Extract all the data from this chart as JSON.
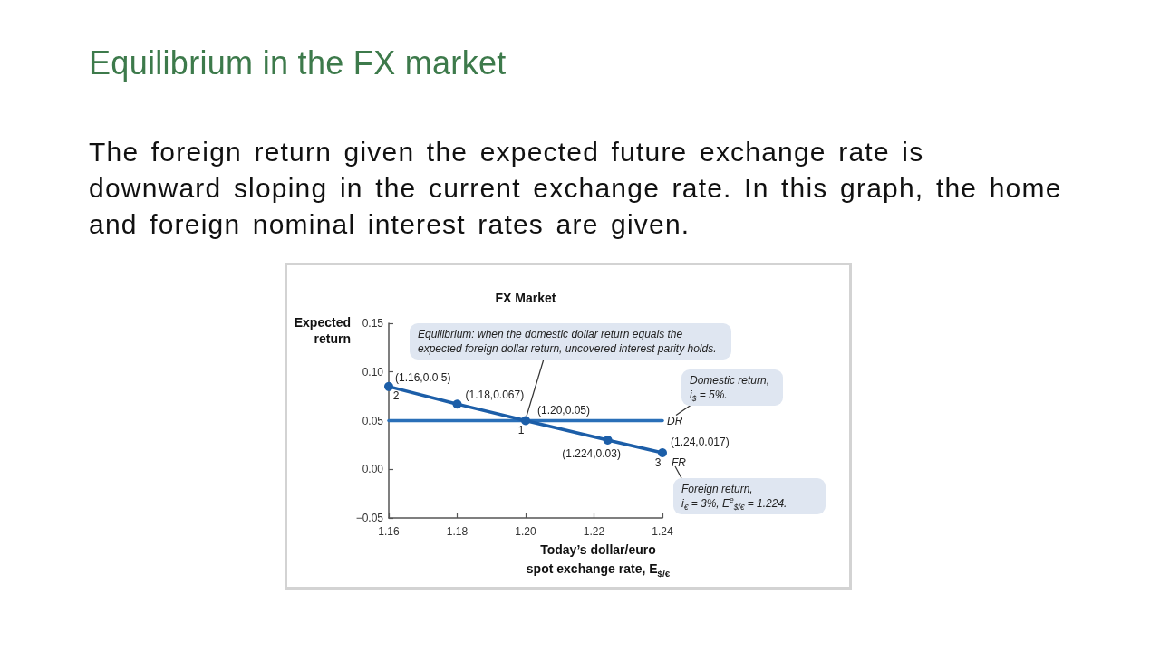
{
  "chart_data": {
    "type": "line",
    "title": "Equilibrium in the FX market",
    "subtitle": "The foreign return given the expected future exchange rate is\ndownward sloping in the current exchange rate. In this graph, the home\nand foreign nominal interest rates are given.",
    "ylabel": "Expected return",
    "xlabel": "Today’s dollar/euro\nspot exchange rate, E$_{$/€}$",
    "xlim": [
      1.16,
      1.24
    ],
    "xticks": [
      1.16,
      1.18,
      {
        "value": 1.2,
        "label": "1.20"
      },
      1.22,
      1.24
    ],
    "ylim": [
      -0.05,
      0.15
    ],
    "yticks": [
      {
        "value": -0.05,
        "label": "−0.05"
      },
      {
        "value": 0,
        "label": "0.00"
      },
      0.05,
      {
        "value": 0.1,
        "label": "0.10"
      },
      0.15
    ],
    "marker": "circle",
    "series": [
      {
        "name": "DR",
        "color": "#2a6fb8",
        "x": [
          1.16,
          1.24
        ],
        "values": [
          0.05,
          0.05
        ],
        "marker": "none"
      },
      {
        "name": "FR",
        "color": "#1c5ea8",
        "x": [
          1.16,
          1.18,
          1.2,
          1.224,
          1.24
        ],
        "values": [
          0.085,
          0.067,
          0.05,
          0.03,
          0.017
        ],
        "value_labels": [
          "(1.16,0.0 5)",
          "(1.18,0.067)",
          "(1.20,0.05)",
          "(1.224,0.03)",
          "(1.24,0.017)"
        ]
      }
    ],
    "annotations": [
      "FX Market",
      {
        "text": "Equilibrium: when the domestic dollar return equals the expected foreign dollar return, uncovered interest parity holds.",
        "x": 1.2,
        "y": 0.05
      },
      "Domestic return,\ni$_{$}$ = 5%.",
      "Foreign return,\ni$_{€}$ = 3%, E$^{e}$$_{$/€}$ = 1.224.",
      {
        "text": "2",
        "x": 1.16,
        "y": 0.085
      },
      {
        "text": "1",
        "x": 1.2,
        "y": 0.05
      },
      {
        "text": "3",
        "x": 1.24,
        "y": 0.017
      }
    ]
  }
}
